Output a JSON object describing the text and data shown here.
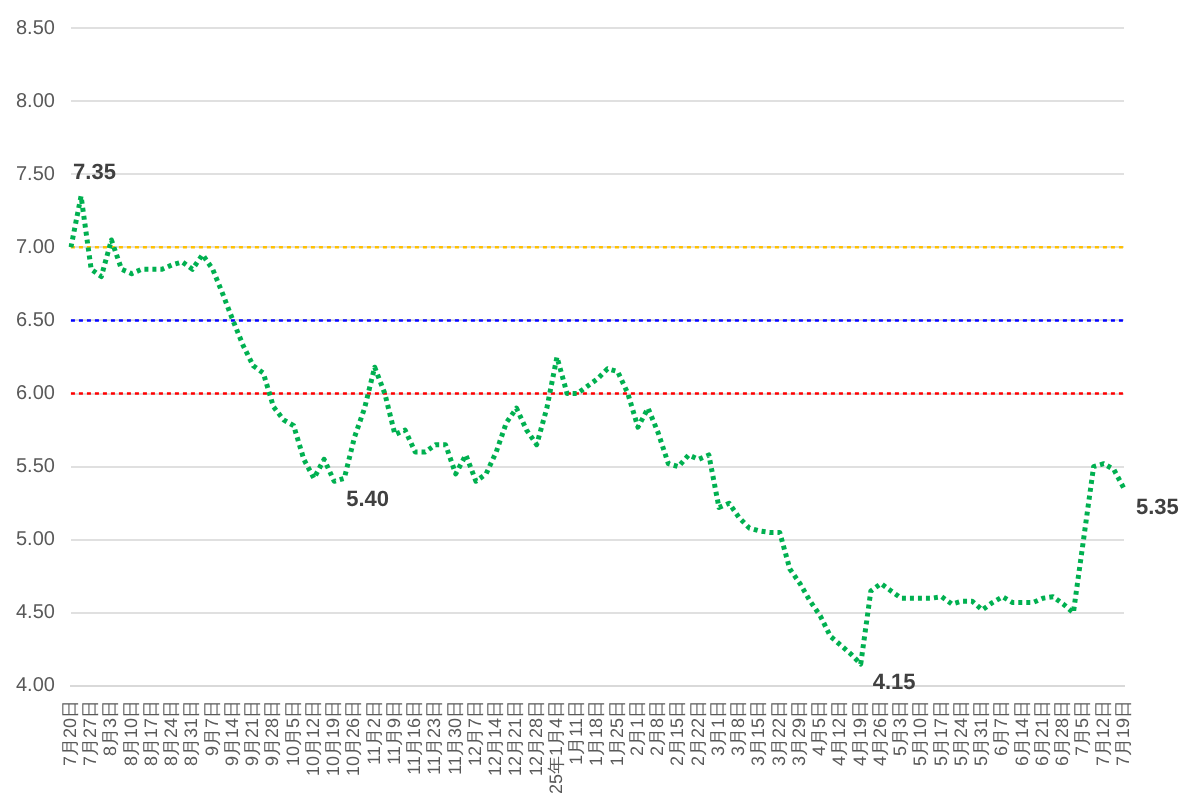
{
  "chart_data": {
    "type": "line",
    "categories": [
      "7月20日",
      null,
      "7月27日",
      null,
      "8月3日",
      null,
      "8月10日",
      null,
      "8月17日",
      null,
      "8月24日",
      null,
      "8月31日",
      null,
      "9月7日",
      null,
      "9月14日",
      null,
      "9月21日",
      null,
      "9月28日",
      null,
      "10月5日",
      null,
      "10月12日",
      null,
      "10月19日",
      null,
      "10月26日",
      null,
      "11月2日",
      null,
      "11月9日",
      null,
      "11月16日",
      null,
      "11月23日",
      null,
      "11月30日",
      null,
      "12月7日",
      null,
      "12月14日",
      null,
      "12月21日",
      null,
      "12月28日",
      null,
      "25年1月4日",
      null,
      "1月11日",
      null,
      "1月18日",
      null,
      "1月25日",
      null,
      "2月1日",
      null,
      "2月8日",
      null,
      "2月15日",
      null,
      "2月22日",
      null,
      "3月1日",
      null,
      "3月8日",
      null,
      "3月15日",
      null,
      "3月22日",
      null,
      "3月29日",
      null,
      "4月5日",
      null,
      "4月12日",
      null,
      "4月19日",
      null,
      "4月26日",
      null,
      "5月3日",
      null,
      "5月10日",
      null,
      "5月17日",
      null,
      "5月24日",
      null,
      "5月31日",
      null,
      "6月7日",
      null,
      "6月14日",
      null,
      "6月21日",
      null,
      "6月28日",
      null,
      "7月5日",
      null,
      "7月12日",
      null,
      "7月19日"
    ],
    "series": [
      {
        "color": "#00b050",
        "line_style": "dotted",
        "values": [
          7.0,
          7.35,
          6.85,
          6.8,
          7.05,
          6.85,
          6.82,
          6.85,
          6.85,
          6.85,
          6.88,
          6.9,
          6.85,
          6.95,
          6.85,
          6.68,
          6.5,
          6.33,
          6.19,
          6.14,
          5.91,
          5.82,
          5.78,
          5.55,
          5.42,
          5.55,
          5.4,
          5.42,
          5.7,
          5.9,
          6.18,
          6.0,
          5.72,
          5.75,
          5.6,
          5.6,
          5.65,
          5.65,
          5.45,
          5.58,
          5.4,
          5.45,
          5.6,
          5.8,
          5.9,
          5.75,
          5.65,
          5.9,
          6.25,
          6.0,
          6.0,
          6.05,
          6.1,
          6.17,
          6.15,
          6.0,
          5.77,
          5.9,
          5.73,
          5.52,
          5.5,
          5.58,
          5.55,
          5.58,
          5.22,
          5.25,
          5.15,
          5.08,
          5.06,
          5.05,
          5.05,
          4.8,
          4.7,
          4.58,
          4.48,
          4.34,
          4.28,
          4.22,
          4.15,
          4.65,
          4.7,
          4.65,
          4.6,
          4.6,
          4.6,
          4.6,
          4.61,
          4.56,
          4.58,
          4.58,
          4.52,
          4.57,
          4.61,
          4.57,
          4.57,
          4.57,
          4.6,
          4.61,
          4.56,
          4.5,
          5.0,
          5.5,
          5.52,
          5.48,
          5.35
        ],
        "value_labels": [
          null,
          "7.35",
          null,
          null,
          null,
          null,
          null,
          null,
          null,
          null,
          null,
          null,
          null,
          null,
          null,
          null,
          null,
          null,
          null,
          null,
          null,
          null,
          null,
          null,
          null,
          null,
          "5.40",
          null,
          null,
          null,
          null,
          null,
          null,
          null,
          null,
          null,
          null,
          null,
          null,
          null,
          null,
          null,
          null,
          null,
          null,
          null,
          null,
          null,
          null,
          null,
          null,
          null,
          null,
          null,
          null,
          null,
          null,
          null,
          null,
          null,
          null,
          null,
          null,
          null,
          null,
          null,
          null,
          null,
          null,
          null,
          null,
          null,
          null,
          null,
          null,
          null,
          null,
          null,
          "4.15",
          null,
          null,
          null,
          null,
          null,
          null,
          null,
          null,
          null,
          null,
          null,
          null,
          null,
          null,
          null,
          null,
          null,
          null,
          null,
          null,
          null,
          null,
          null,
          null,
          null,
          "5.35"
        ]
      }
    ],
    "ylim": [
      4,
      8.5
    ],
    "yticks": [
      {
        "value": 4,
        "label": "4.00"
      },
      {
        "value": 4.5,
        "label": "4.50"
      },
      {
        "value": 5,
        "label": "5.00"
      },
      {
        "value": 5.5,
        "label": "5.50"
      },
      {
        "value": 6,
        "label": "6.00"
      },
      {
        "value": 6.5,
        "label": "6.50"
      },
      {
        "value": 7,
        "label": "7.00"
      },
      {
        "value": 7.5,
        "label": "7.50"
      },
      {
        "value": 8,
        "label": "8.00"
      },
      {
        "value": 8.5,
        "label": "8.50"
      }
    ],
    "grid": "y",
    "legend": false,
    "marker": "none",
    "ref_lines": [
      {
        "axis": "y",
        "value": 7,
        "color": "#ffc000",
        "line_style": "dotted"
      },
      {
        "axis": "y",
        "value": 6.5,
        "color": "#0000ff",
        "line_style": "dotted"
      },
      {
        "axis": "y",
        "value": 6,
        "color": "#ff0000",
        "line_style": "dotted"
      }
    ]
  }
}
